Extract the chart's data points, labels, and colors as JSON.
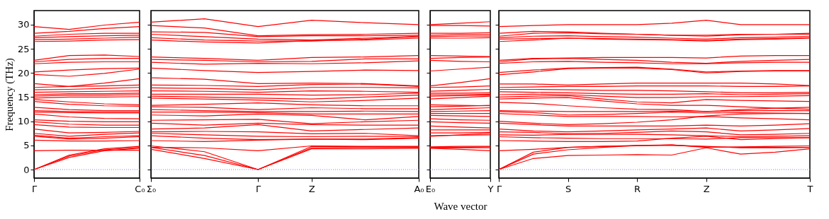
{
  "chart_data": [
    {
      "type": "line",
      "ylabel": "Frequency (THz)",
      "categories": [
        "Γ",
        null,
        null,
        "C₀"
      ],
      "ylim": [
        -1.75,
        32.9
      ],
      "yticks": [
        0,
        5,
        10,
        15,
        20,
        25,
        30
      ],
      "line_style": "solid",
      "ref_lines": [
        {
          "axis": "y",
          "value": 0,
          "color": "#7f7fff",
          "line_style": "dotted"
        }
      ],
      "series": [
        {
          "color": "#ff0000",
          "values": [
            29.6,
            29.0,
            29.9,
            30.5
          ]
        },
        {
          "color": "#ff0000",
          "values": [
            28.2,
            28.6,
            29.2,
            29.6
          ]
        },
        {
          "color": "#ff0000",
          "values": [
            27.6,
            28.0,
            28.2,
            28.2
          ]
        },
        {
          "color": "#ff0000",
          "values": [
            27.3,
            27.5,
            27.7,
            27.8
          ]
        },
        {
          "color": "#ff0000",
          "values": [
            26.9,
            27.0,
            27.2,
            27.4
          ]
        },
        {
          "color": "#ff0000",
          "values": [
            26.5,
            26.6,
            26.8,
            26.9
          ]
        },
        {
          "color": "#ff0000",
          "values": [
            22.6,
            23.6,
            23.7,
            23.4
          ]
        },
        {
          "color": "#ff0000",
          "values": [
            22.3,
            22.8,
            23.0,
            23.0
          ]
        },
        {
          "color": "#ff0000",
          "values": [
            21.9,
            22.2,
            22.3,
            22.3
          ]
        },
        {
          "color": "#ff0000",
          "values": [
            20.2,
            20.6,
            20.9,
            21.0
          ]
        },
        {
          "color": "#ff0000",
          "values": [
            19.7,
            19.3,
            19.9,
            20.8
          ]
        },
        {
          "color": "#ff0000",
          "values": [
            17.8,
            17.2,
            17.9,
            18.8
          ]
        },
        {
          "color": "#ff0000",
          "values": [
            17.0,
            17.2,
            17.3,
            17.5
          ]
        },
        {
          "color": "#ff0000",
          "values": [
            16.5,
            16.6,
            16.8,
            17.0
          ]
        },
        {
          "color": "#ff0000",
          "values": [
            16.0,
            16.1,
            16.2,
            16.3
          ]
        },
        {
          "color": "#ff0000",
          "values": [
            15.5,
            15.7,
            15.7,
            15.8
          ]
        },
        {
          "color": "#ff0000",
          "values": [
            15.2,
            15.4,
            15.4,
            15.5
          ]
        },
        {
          "color": "#ff0000",
          "values": [
            14.8,
            15.0,
            15.0,
            15.1
          ]
        },
        {
          "color": "#ff0000",
          "values": [
            14.5,
            14.0,
            13.6,
            13.4
          ]
        },
        {
          "color": "#ff0000",
          "values": [
            14.1,
            13.5,
            13.2,
            13.1
          ]
        },
        {
          "color": "#ff0000",
          "values": [
            12.9,
            12.4,
            12.2,
            12.2
          ]
        },
        {
          "color": "#ff0000",
          "values": [
            12.2,
            12.0,
            11.9,
            11.9
          ]
        },
        {
          "color": "#ff0000",
          "values": [
            11.9,
            11.8,
            11.7,
            11.7
          ]
        },
        {
          "color": "#ff0000",
          "values": [
            11.5,
            10.9,
            10.6,
            10.5
          ]
        },
        {
          "color": "#ff0000",
          "values": [
            10.3,
            10.0,
            9.9,
            9.9
          ]
        },
        {
          "color": "#ff0000",
          "values": [
            9.9,
            9.4,
            9.2,
            9.2
          ]
        },
        {
          "color": "#ff0000",
          "values": [
            9.3,
            8.8,
            8.7,
            8.7
          ]
        },
        {
          "color": "#ff0000",
          "values": [
            8.4,
            7.6,
            7.7,
            7.9
          ]
        },
        {
          "color": "#ff0000",
          "values": [
            7.5,
            6.9,
            7.3,
            7.6
          ]
        },
        {
          "color": "#ff0000",
          "values": [
            7.1,
            6.5,
            6.8,
            7.0
          ]
        },
        {
          "color": "#ff0000",
          "values": [
            6.9,
            6.3,
            6.5,
            6.8
          ]
        },
        {
          "color": "#ff0000",
          "values": [
            6.1,
            5.9,
            5.9,
            6.0
          ]
        },
        {
          "color": "#ff0000",
          "values": [
            3.9,
            4.0,
            4.0,
            4.0
          ]
        },
        {
          "color": "#ff0000",
          "values": [
            0,
            3.0,
            4.3,
            4.8
          ]
        },
        {
          "color": "#ff0000",
          "values": [
            0,
            2.8,
            4.1,
            4.6
          ]
        },
        {
          "color": "#ff0000",
          "values": [
            0,
            2.5,
            3.9,
            4.4
          ]
        }
      ]
    },
    {
      "type": "line",
      "categories": [
        "Σ₀",
        null,
        "Γ",
        "Z",
        null,
        "A₀"
      ],
      "ylim": [
        -1.75,
        32.9
      ],
      "yticks": [
        0,
        5,
        10,
        15,
        20,
        25,
        30
      ],
      "tick_labels": "x",
      "line_style": "solid",
      "ref_lines": [
        {
          "axis": "y",
          "value": 0,
          "color": "#7f7fff",
          "line_style": "dotted"
        }
      ],
      "series": [
        {
          "color": "#ff0000",
          "values": [
            30.5,
            31.2,
            29.6,
            30.9,
            30.4,
            30.0
          ]
        },
        {
          "color": "#ff0000",
          "values": [
            29.8,
            29.3,
            27.7,
            27.9,
            28.0,
            28.2
          ]
        },
        {
          "color": "#ff0000",
          "values": [
            28.5,
            28.4,
            27.5,
            27.7,
            27.7,
            27.8
          ]
        },
        {
          "color": "#ff0000",
          "values": [
            28.0,
            27.5,
            27.0,
            26.8,
            27.2,
            27.6
          ]
        },
        {
          "color": "#ff0000",
          "values": [
            27.3,
            26.8,
            26.6,
            26.6,
            27.0,
            27.5
          ]
        },
        {
          "color": "#ff0000",
          "values": [
            26.8,
            26.4,
            26.2,
            26.7,
            26.8,
            27.2
          ]
        },
        {
          "color": "#ff0000",
          "values": [
            23.3,
            23.0,
            22.6,
            23.2,
            23.3,
            23.6
          ]
        },
        {
          "color": "#ff0000",
          "values": [
            22.8,
            22.6,
            22.3,
            22.4,
            22.9,
            22.9
          ]
        },
        {
          "color": "#ff0000",
          "values": [
            22.2,
            21.8,
            22.0,
            21.9,
            22.1,
            22.5
          ]
        },
        {
          "color": "#ff0000",
          "values": [
            21.0,
            20.5,
            20.1,
            20.3,
            20.6,
            20.5
          ]
        },
        {
          "color": "#ff0000",
          "values": [
            19.0,
            18.7,
            17.8,
            17.9,
            17.8,
            17.3
          ]
        },
        {
          "color": "#ff0000",
          "values": [
            17.5,
            17.4,
            17.2,
            17.6,
            17.7,
            17.2
          ]
        },
        {
          "color": "#ff0000",
          "values": [
            16.9,
            16.8,
            16.5,
            17.0,
            17.0,
            16.9
          ]
        },
        {
          "color": "#ff0000",
          "values": [
            16.3,
            16.2,
            16.0,
            16.3,
            16.2,
            16.0
          ]
        },
        {
          "color": "#ff0000",
          "values": [
            15.6,
            15.6,
            15.6,
            15.4,
            15.5,
            15.8
          ]
        },
        {
          "color": "#ff0000",
          "values": [
            15.2,
            15.0,
            14.8,
            14.6,
            15.0,
            15.4
          ]
        },
        {
          "color": "#ff0000",
          "values": [
            14.8,
            14.6,
            14.4,
            14.0,
            14.3,
            14.8
          ]
        },
        {
          "color": "#ff0000",
          "values": [
            13.3,
            13.5,
            13.8,
            13.4,
            13.2,
            13.2
          ]
        },
        {
          "color": "#ff0000",
          "values": [
            13.0,
            12.9,
            12.4,
            12.8,
            12.6,
            12.6
          ]
        },
        {
          "color": "#ff0000",
          "values": [
            12.4,
            12.2,
            12.0,
            12.0,
            12.1,
            12.0
          ]
        },
        {
          "color": "#ff0000",
          "values": [
            11.9,
            11.9,
            11.8,
            11.5,
            11.5,
            11.5
          ]
        },
        {
          "color": "#ff0000",
          "values": [
            11.3,
            11.1,
            11.5,
            11.2,
            10.3,
            11.0
          ]
        },
        {
          "color": "#ff0000",
          "values": [
            10.2,
            10.3,
            10.4,
            9.5,
            9.9,
            10.2
          ]
        },
        {
          "color": "#ff0000",
          "values": [
            9.6,
            9.2,
            9.6,
            9.3,
            9.2,
            9.2
          ]
        },
        {
          "color": "#ff0000",
          "values": [
            8.4,
            8.6,
            9.3,
            8.0,
            8.3,
            8.6
          ]
        },
        {
          "color": "#ff0000",
          "values": [
            7.8,
            7.9,
            7.8,
            7.4,
            7.5,
            7.0
          ]
        },
        {
          "color": "#ff0000",
          "values": [
            7.5,
            7.2,
            6.9,
            6.8,
            6.9,
            6.8
          ]
        },
        {
          "color": "#ff0000",
          "values": [
            7.0,
            6.5,
            6.2,
            6.3,
            6.3,
            6.6
          ]
        },
        {
          "color": "#ff0000",
          "values": [
            6.0,
            5.8,
            6.1,
            6.3,
            6.2,
            6.5
          ]
        },
        {
          "color": "#ff0000",
          "values": [
            4.6,
            4.5,
            3.9,
            4.9,
            4.8,
            4.8
          ]
        },
        {
          "color": "#ff0000",
          "values": [
            4.9,
            3.7,
            0,
            4.8,
            4.7,
            4.7
          ]
        },
        {
          "color": "#ff0000",
          "values": [
            4.6,
            2.9,
            0,
            4.5,
            4.6,
            4.6
          ]
        },
        {
          "color": "#ff0000",
          "values": [
            4.2,
            2.3,
            0,
            4.3,
            4.3,
            4.4
          ]
        }
      ]
    },
    {
      "type": "line",
      "xlabel": "Wave vector",
      "categories": [
        "E₀",
        null,
        "Y"
      ],
      "ylim": [
        -1.75,
        32.9
      ],
      "yticks": [
        0,
        5,
        10,
        15,
        20,
        25,
        30
      ],
      "tick_labels": "x",
      "line_style": "solid",
      "ref_lines": [
        {
          "axis": "y",
          "value": 0,
          "color": "#7f7fff",
          "line_style": "dotted"
        }
      ],
      "series": [
        {
          "color": "#ff0000",
          "values": [
            30.0,
            30.3,
            30.6
          ]
        },
        {
          "color": "#ff0000",
          "values": [
            29.8,
            29.8,
            29.7
          ]
        },
        {
          "color": "#ff0000",
          "values": [
            28.2,
            28.2,
            28.3
          ]
        },
        {
          "color": "#ff0000",
          "values": [
            27.8,
            27.9,
            27.9
          ]
        },
        {
          "color": "#ff0000",
          "values": [
            27.5,
            27.6,
            27.6
          ]
        },
        {
          "color": "#ff0000",
          "values": [
            27.2,
            27.2,
            27.3
          ]
        },
        {
          "color": "#ff0000",
          "values": [
            23.6,
            23.5,
            23.4
          ]
        },
        {
          "color": "#ff0000",
          "values": [
            23.0,
            23.2,
            23.3
          ]
        },
        {
          "color": "#ff0000",
          "values": [
            22.6,
            22.4,
            22.3
          ]
        },
        {
          "color": "#ff0000",
          "values": [
            20.4,
            20.8,
            21.2
          ]
        },
        {
          "color": "#ff0000",
          "values": [
            17.3,
            18.0,
            18.8
          ]
        },
        {
          "color": "#ff0000",
          "values": [
            17.0,
            17.1,
            17.3
          ]
        },
        {
          "color": "#ff0000",
          "values": [
            16.2,
            16.4,
            16.6
          ]
        },
        {
          "color": "#ff0000",
          "values": [
            15.8,
            15.8,
            15.9
          ]
        },
        {
          "color": "#ff0000",
          "values": [
            15.5,
            15.5,
            15.6
          ]
        },
        {
          "color": "#ff0000",
          "values": [
            15.2,
            15.3,
            15.4
          ]
        },
        {
          "color": "#ff0000",
          "values": [
            14.6,
            14.9,
            15.2
          ]
        },
        {
          "color": "#ff0000",
          "values": [
            13.4,
            13.3,
            13.2
          ]
        },
        {
          "color": "#ff0000",
          "values": [
            13.0,
            13.1,
            13.3
          ]
        },
        {
          "color": "#ff0000",
          "values": [
            12.4,
            12.6,
            12.8
          ]
        },
        {
          "color": "#ff0000",
          "values": [
            12.0,
            12.1,
            12.2
          ]
        },
        {
          "color": "#ff0000",
          "values": [
            11.6,
            11.6,
            11.6
          ]
        },
        {
          "color": "#ff0000",
          "values": [
            11.2,
            11.1,
            11.0
          ]
        },
        {
          "color": "#ff0000",
          "values": [
            10.5,
            10.3,
            10.2
          ]
        },
        {
          "color": "#ff0000",
          "values": [
            9.9,
            9.7,
            9.6
          ]
        },
        {
          "color": "#ff0000",
          "values": [
            9.0,
            8.8,
            8.6
          ]
        },
        {
          "color": "#ff0000",
          "values": [
            8.2,
            8.2,
            8.2
          ]
        },
        {
          "color": "#ff0000",
          "values": [
            7.6,
            7.6,
            7.7
          ]
        },
        {
          "color": "#ff0000",
          "values": [
            7.0,
            7.1,
            7.2
          ]
        },
        {
          "color": "#ff0000",
          "values": [
            6.9,
            7.2,
            7.5
          ]
        },
        {
          "color": "#ff0000",
          "values": [
            4.7,
            4.8,
            4.8
          ]
        },
        {
          "color": "#ff0000",
          "values": [
            4.6,
            4.6,
            4.7
          ]
        },
        {
          "color": "#ff0000",
          "values": [
            4.5,
            4.5,
            4.5
          ]
        },
        {
          "color": "#ff0000",
          "values": [
            4.4,
            4.2,
            3.9
          ]
        }
      ]
    },
    {
      "type": "line",
      "categories": [
        "Γ",
        null,
        "S",
        null,
        "R",
        null,
        "Z",
        null,
        null,
        "T"
      ],
      "ylim": [
        -1.75,
        32.9
      ],
      "yticks": [
        0,
        5,
        10,
        15,
        20,
        25,
        30
      ],
      "tick_labels": "x",
      "line_style": "solid",
      "ref_lines": [
        {
          "axis": "y",
          "value": 0,
          "color": "#7f7fff",
          "line_style": "dotted"
        }
      ],
      "series": [
        {
          "color": "#ff0000",
          "values": [
            29.6,
            29.8,
            30.0,
            30.0,
            30.0,
            30.3,
            30.9,
            30.0,
            30.0,
            30.0
          ]
        },
        {
          "color": "#ff0000",
          "values": [
            28.2,
            28.6,
            28.5,
            28.2,
            28.0,
            27.8,
            27.6,
            27.9,
            28.0,
            28.2
          ]
        },
        {
          "color": "#ff0000",
          "values": [
            27.6,
            28.2,
            28.3,
            28.1,
            28.0,
            27.8,
            27.8,
            28.0,
            28.0,
            28.0
          ]
        },
        {
          "color": "#ff0000",
          "values": [
            27.3,
            27.6,
            27.7,
            27.5,
            27.4,
            27.2,
            27.0,
            27.3,
            27.4,
            27.6
          ]
        },
        {
          "color": "#ff0000",
          "values": [
            27.0,
            27.1,
            27.2,
            27.1,
            27.0,
            26.9,
            26.7,
            27.0,
            27.1,
            27.3
          ]
        },
        {
          "color": "#ff0000",
          "values": [
            26.5,
            26.8,
            27.2,
            27.0,
            26.9,
            26.8,
            26.6,
            26.9,
            27.0,
            27.2
          ]
        },
        {
          "color": "#ff0000",
          "values": [
            22.6,
            23.0,
            23.1,
            23.2,
            23.2,
            23.2,
            23.1,
            23.5,
            23.6,
            23.6
          ]
        },
        {
          "color": "#ff0000",
          "values": [
            22.3,
            22.9,
            23.0,
            22.8,
            22.6,
            22.2,
            22.0,
            22.4,
            22.6,
            22.8
          ]
        },
        {
          "color": "#ff0000",
          "values": [
            22.0,
            22.3,
            22.4,
            22.2,
            22.1,
            21.9,
            21.9,
            22.1,
            22.2,
            22.2
          ]
        },
        {
          "color": "#ff0000",
          "values": [
            20.1,
            20.6,
            21.0,
            21.1,
            21.2,
            20.8,
            20.2,
            20.4,
            20.5,
            20.5
          ]
        },
        {
          "color": "#ff0000",
          "values": [
            19.6,
            20.2,
            20.9,
            21.0,
            21.0,
            20.7,
            20.0,
            20.3,
            20.4,
            20.4
          ]
        },
        {
          "color": "#ff0000",
          "values": [
            17.7,
            17.7,
            17.5,
            17.7,
            17.9,
            17.9,
            17.9,
            17.9,
            17.7,
            17.4
          ]
        },
        {
          "color": "#ff0000",
          "values": [
            17.0,
            17.1,
            17.2,
            17.2,
            17.3,
            17.3,
            17.3,
            17.2,
            17.2,
            17.3
          ]
        },
        {
          "color": "#ff0000",
          "values": [
            16.6,
            16.6,
            16.5,
            16.4,
            16.4,
            16.3,
            16.1,
            15.9,
            15.9,
            16.0
          ]
        },
        {
          "color": "#ff0000",
          "values": [
            16.1,
            16.0,
            15.9,
            15.7,
            15.6,
            15.6,
            15.7,
            15.5,
            15.6,
            15.7
          ]
        },
        {
          "color": "#ff0000",
          "values": [
            15.5,
            15.6,
            15.5,
            15.2,
            14.9,
            14.9,
            15.1,
            15.1,
            15.2,
            15.3
          ]
        },
        {
          "color": "#ff0000",
          "values": [
            15.0,
            15.2,
            15.3,
            14.6,
            14.0,
            13.8,
            14.5,
            14.3,
            14.2,
            14.1
          ]
        },
        {
          "color": "#ff0000",
          "values": [
            14.6,
            14.8,
            14.9,
            14.2,
            13.6,
            13.3,
            13.3,
            13.0,
            12.7,
            12.5
          ]
        },
        {
          "color": "#ff0000",
          "values": [
            13.9,
            13.7,
            13.2,
            12.8,
            12.5,
            12.4,
            12.0,
            12.4,
            12.7,
            12.9
          ]
        },
        {
          "color": "#ff0000",
          "values": [
            12.2,
            12.1,
            12.0,
            12.0,
            12.0,
            12.1,
            12.0,
            12.2,
            12.2,
            12.2
          ]
        },
        {
          "color": "#ff0000",
          "values": [
            12.0,
            11.8,
            11.3,
            11.4,
            11.6,
            11.9,
            11.7,
            11.8,
            11.7,
            11.6
          ]
        },
        {
          "color": "#ff0000",
          "values": [
            11.6,
            11.3,
            11.0,
            11.0,
            11.0,
            10.9,
            11.0,
            10.7,
            10.5,
            10.3
          ]
        },
        {
          "color": "#ff0000",
          "values": [
            10.0,
            9.6,
            9.3,
            9.5,
            9.8,
            10.3,
            11.1,
            11.5,
            11.6,
            11.6
          ]
        },
        {
          "color": "#ff0000",
          "values": [
            9.6,
            9.3,
            9.0,
            9.0,
            9.0,
            9.0,
            9.2,
            9.0,
            9.2,
            9.5
          ]
        },
        {
          "color": "#ff0000",
          "values": [
            8.4,
            8.0,
            7.8,
            8.0,
            8.2,
            8.4,
            8.6,
            8.0,
            8.2,
            8.5
          ]
        },
        {
          "color": "#ff0000",
          "values": [
            7.8,
            7.7,
            7.4,
            7.5,
            7.7,
            8.0,
            7.8,
            7.2,
            7.3,
            7.5
          ]
        },
        {
          "color": "#ff0000",
          "values": [
            7.2,
            7.1,
            7.3,
            7.3,
            7.3,
            7.2,
            7.0,
            6.8,
            6.9,
            7.0
          ]
        },
        {
          "color": "#ff0000",
          "values": [
            6.8,
            6.6,
            6.5,
            6.4,
            6.4,
            6.4,
            6.3,
            6.6,
            6.6,
            6.6
          ]
        },
        {
          "color": "#ff0000",
          "values": [
            6.0,
            5.9,
            5.8,
            5.8,
            5.9,
            6.5,
            6.9,
            6.2,
            6.4,
            6.6
          ]
        },
        {
          "color": "#ff0000",
          "values": [
            3.9,
            4.2,
            4.6,
            4.8,
            4.9,
            5.1,
            4.7,
            4.6,
            4.6,
            4.6
          ]
        },
        {
          "color": "#ff0000",
          "values": [
            0,
            3.6,
            4.6,
            4.8,
            5.0,
            5.1,
            4.6,
            4.7,
            4.8,
            4.9
          ]
        },
        {
          "color": "#ff0000",
          "values": [
            0,
            3.2,
            4.1,
            4.6,
            5.0,
            5.0,
            4.8,
            4.5,
            4.5,
            4.6
          ]
        },
        {
          "color": "#ff0000",
          "values": [
            0,
            2.3,
            2.9,
            3.0,
            3.1,
            3.0,
            4.5,
            3.2,
            3.6,
            4.3
          ]
        }
      ]
    }
  ]
}
